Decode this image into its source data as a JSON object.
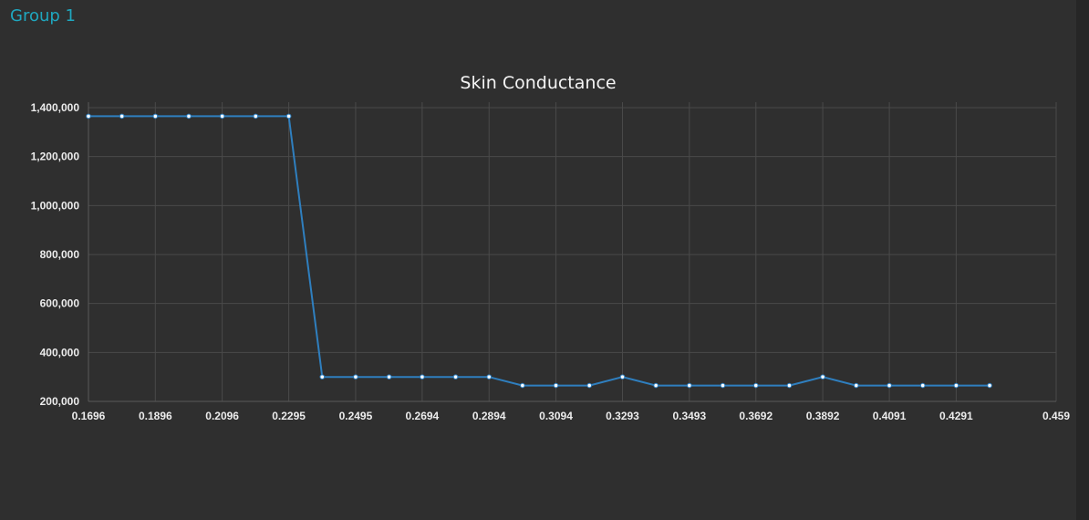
{
  "group_title": "Group 1",
  "colors": {
    "line": "#2f7fbf",
    "marker_fill": "#ffffff",
    "grid": "#4a4a4a"
  },
  "chart_data": {
    "type": "line",
    "title": "Skin Conductance",
    "xlabel": "",
    "ylabel": "",
    "xlim": [
      0.1696,
      0.459
    ],
    "ylim": [
      200000,
      1400000
    ],
    "x_tick_values": [
      0.1696,
      0.1896,
      0.2096,
      0.2295,
      0.2495,
      0.2694,
      0.2894,
      0.3094,
      0.3293,
      0.3493,
      0.3692,
      0.3892,
      0.4091,
      0.4291,
      0.459
    ],
    "x_tick_labels": [
      "0.1696",
      "0.1896",
      "0.2096",
      "0.2295",
      "0.2495",
      "0.2694",
      "0.2894",
      "0.3094",
      "0.3293",
      "0.3493",
      "0.3692",
      "0.3892",
      "0.4091",
      "0.4291",
      "0.459"
    ],
    "y_tick_values": [
      200000,
      400000,
      600000,
      800000,
      1000000,
      1200000,
      1400000
    ],
    "y_tick_labels": [
      "200,000",
      "400,000",
      "600,000",
      "800,000",
      "1,000,000",
      "1,200,000",
      "1,400,000"
    ],
    "grid": true,
    "legend": "none",
    "series": [
      {
        "x": [
          0.1696,
          0.1796,
          0.1896,
          0.1996,
          0.2096,
          0.2196,
          0.2295,
          0.2395,
          0.2495,
          0.2595,
          0.2694,
          0.2794,
          0.2894,
          0.2994,
          0.3094,
          0.3194,
          0.3293,
          0.3393,
          0.3493,
          0.3593,
          0.3692,
          0.3792,
          0.3892,
          0.3992,
          0.4091,
          0.4191,
          0.4291,
          0.4391
        ],
        "y": [
          1365000,
          1365000,
          1365000,
          1365000,
          1365000,
          1365000,
          1365000,
          300000,
          300000,
          300000,
          300000,
          300000,
          300000,
          265000,
          265000,
          265000,
          300000,
          265000,
          265000,
          265000,
          265000,
          265000,
          300000,
          265000,
          265000,
          265000,
          265000,
          265000
        ]
      }
    ]
  }
}
